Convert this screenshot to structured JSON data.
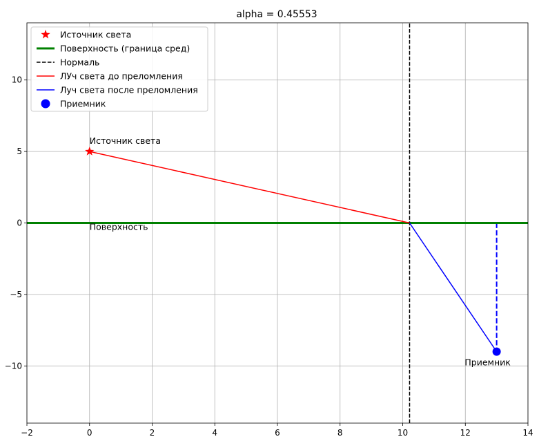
{
  "chart_data": {
    "type": "line",
    "title": "alpha = 0.45553",
    "xlim": [
      -2,
      14
    ],
    "ylim": [
      -14,
      14
    ],
    "xticks": [
      -2,
      0,
      2,
      4,
      6,
      8,
      10,
      12,
      14
    ],
    "yticks": [
      -10,
      -5,
      0,
      5,
      10
    ],
    "xtick_labels": [
      "−2",
      "0",
      "2",
      "4",
      "6",
      "8",
      "10",
      "12",
      "14"
    ],
    "ytick_labels": [
      "−10",
      "−5",
      "0",
      "5",
      "10"
    ],
    "grid": true,
    "legend_position": "top-left",
    "series": [
      {
        "name": "Источник света",
        "kind": "marker",
        "marker": "star",
        "color": "#ff0000",
        "x": [
          0
        ],
        "y": [
          5
        ]
      },
      {
        "name": "Поверхность (граница сред)",
        "kind": "line",
        "style": "solid",
        "color": "#008000",
        "x": [
          -2,
          14
        ],
        "y": [
          0,
          0
        ]
      },
      {
        "name": "Нормаль",
        "kind": "line",
        "style": "dashed",
        "color": "#000000",
        "x": [
          10.22,
          10.22
        ],
        "y": [
          -14,
          14
        ]
      },
      {
        "name": "ЛУч света до преломления",
        "kind": "line",
        "style": "solid",
        "color": "#ff0000",
        "x": [
          0,
          10.22
        ],
        "y": [
          5,
          0
        ]
      },
      {
        "name": "Луч света после преломления",
        "kind": "line",
        "style": "solid",
        "color": "#0000ff",
        "x": [
          10.22,
          13
        ],
        "y": [
          0,
          -9
        ]
      },
      {
        "name": "Приемник",
        "kind": "marker",
        "marker": "circle",
        "color": "#0000ff",
        "x": [
          13
        ],
        "y": [
          -9
        ]
      }
    ],
    "extra_lines": [
      {
        "style": "dashed",
        "color": "#0000ff",
        "x": [
          13,
          13
        ],
        "y": [
          0,
          -9
        ]
      }
    ],
    "annotations": [
      {
        "text": "Источник света",
        "x": 0,
        "y": 5,
        "anchor": "above-right"
      },
      {
        "text": "Поверхность",
        "x": 0,
        "y": 0,
        "anchor": "below-right"
      },
      {
        "text": "Приемник",
        "x": 13,
        "y": -9,
        "anchor": "below-center"
      }
    ]
  }
}
